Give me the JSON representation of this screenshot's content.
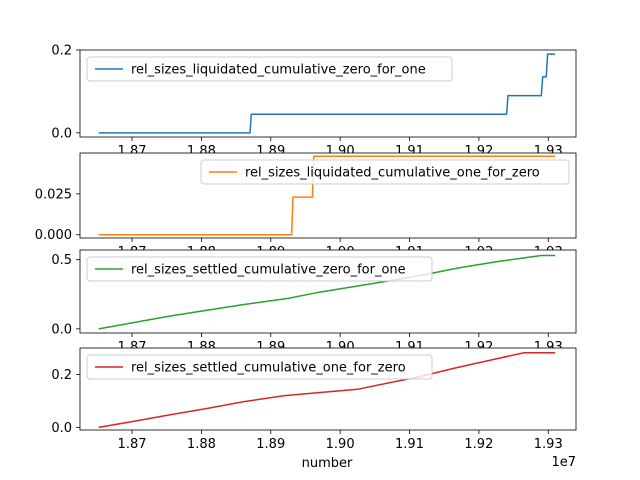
{
  "chart_data": {
    "type": "line",
    "xlabel": "number",
    "x_offset_label": "1e7",
    "x_tick_labels": [
      "1.87",
      "1.88",
      "1.89",
      "1.90",
      "1.91",
      "1.92",
      "1.93"
    ],
    "x_ticks": [
      18700000,
      18800000,
      18900000,
      19000000,
      19100000,
      19200000,
      19300000
    ],
    "xlim": [
      18625000,
      19340000
    ],
    "panels": [
      {
        "series_name": "rel_sizes_liquidated_cumulative_zero_for_one",
        "color": "#1f77b4",
        "legend_position": "upper-left",
        "ylim": [
          -0.01,
          0.2
        ],
        "y_ticks": [
          0.0,
          0.2
        ],
        "y_tick_labels": [
          "0.0",
          "0.2"
        ],
        "x": [
          18652000,
          18870000,
          18872000,
          19240000,
          19242000,
          19290000,
          19292000,
          19297000,
          19299000,
          19310000
        ],
        "y": [
          0.0,
          0.0,
          0.045,
          0.045,
          0.09,
          0.09,
          0.135,
          0.135,
          0.19,
          0.19
        ]
      },
      {
        "series_name": "rel_sizes_liquidated_cumulative_one_for_zero",
        "color": "#ff7f0e",
        "legend_position": "upper-right",
        "ylim": [
          -0.002,
          0.05
        ],
        "y_ticks": [
          0.0,
          0.025
        ],
        "y_tick_labels": [
          "0.000",
          "0.025"
        ],
        "x": [
          18652000,
          18930000,
          18932000,
          18960000,
          18962000,
          19310000
        ],
        "y": [
          0.0,
          0.0,
          0.023,
          0.023,
          0.048,
          0.048
        ]
      },
      {
        "series_name": "rel_sizes_settled_cumulative_zero_for_one",
        "color": "#2ca02c",
        "legend_position": "upper-left",
        "ylim": [
          -0.03,
          0.57
        ],
        "y_ticks": [
          0.0,
          0.5
        ],
        "y_tick_labels": [
          "0.0",
          "0.5"
        ],
        "x": [
          18652000,
          18702000,
          18752000,
          18808000,
          18860000,
          18925000,
          18970000,
          19025000,
          19075000,
          19125000,
          19170000,
          19225000,
          19290000,
          19310000
        ],
        "y": [
          0.0,
          0.045,
          0.09,
          0.135,
          0.175,
          0.22,
          0.265,
          0.31,
          0.35,
          0.395,
          0.44,
          0.485,
          0.53,
          0.53
        ]
      },
      {
        "series_name": "rel_sizes_settled_cumulative_one_for_zero",
        "color": "#d62728",
        "legend_position": "upper-left",
        "ylim": [
          -0.01,
          0.3
        ],
        "y_ticks": [
          0.0,
          0.2
        ],
        "y_tick_labels": [
          "0.0",
          "0.2"
        ],
        "x": [
          18652000,
          18705000,
          18755000,
          18810000,
          18858000,
          18920000,
          19025000,
          19070000,
          19115000,
          19165000,
          19220000,
          19265000,
          19310000
        ],
        "y": [
          0.0,
          0.024,
          0.048,
          0.072,
          0.096,
          0.12,
          0.144,
          0.168,
          0.192,
          0.224,
          0.256,
          0.282,
          0.282
        ]
      }
    ]
  }
}
